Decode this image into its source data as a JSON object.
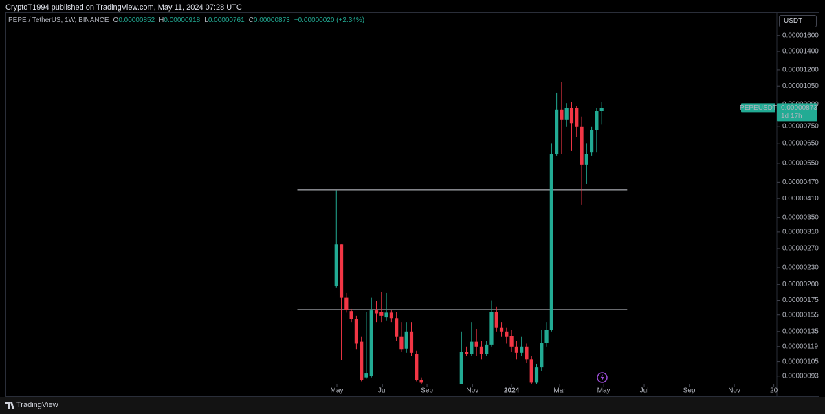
{
  "header": {
    "published": "CryptoT1994 published on TradingView.com, May 11, 2024 07:28 UTC",
    "currency": "USDT",
    "brand": "TradingView"
  },
  "chart_data": {
    "type": "candlestick",
    "title": "PEPE / TetherUS, 1W, BINANCE",
    "ohlc_legend": [
      {
        "key": "O",
        "value": "0.00000852"
      },
      {
        "key": "H",
        "value": "0.00000918"
      },
      {
        "key": "L",
        "value": "0.00000761"
      },
      {
        "key": "C",
        "value": "0.00000873"
      }
    ],
    "change": "+0.00000020 (+2.34%)",
    "up_color": "#22ab94",
    "down_color": "#f23645",
    "log_scale": true,
    "x": [
      0,
      1,
      2,
      3,
      4,
      5,
      6,
      7,
      8,
      9,
      10,
      11,
      12,
      13,
      14,
      15,
      16,
      17,
      25,
      26,
      27,
      28,
      29,
      30,
      31,
      32,
      33,
      34,
      35,
      36,
      37,
      38,
      39,
      40,
      41,
      42,
      43,
      44,
      45,
      46,
      47,
      48,
      49,
      50,
      51,
      52,
      53
    ],
    "open": [
      1.98e-06,
      2.79e-06,
      1.79e-06,
      1.6e-06,
      1.5e-06,
      1.24e-06,
      9.2e-07,
      9.3e-07,
      1.61e-06,
      1.59e-06,
      1.52e-06,
      1.58e-06,
      1.51e-06,
      1.29e-06,
      1.17e-06,
      1.35e-06,
      1.12e-06,
      9e-07,
      8.7e-07,
      1.14e-06,
      1.12e-06,
      1.24e-06,
      1.19e-06,
      1.12e-06,
      1.21e-06,
      1.59e-06,
      1.39e-06,
      1.35e-06,
      1.3e-06,
      1.19e-06,
      1.13e-06,
      1.19e-06,
      1.07e-06,
      8.8e-07,
      1e-06,
      1.23e-06,
      1.37e-06,
      5.93e-06,
      8.61e-06,
      7.9e-06,
      8.74e-06,
      8.7e-06,
      7.46e-06,
      5.44e-06,
      6.02e-06,
      7.26e-06,
      8.52e-06
    ],
    "high": [
      4.38e-06,
      2.79e-06,
      1.86e-06,
      1.63e-06,
      1.54e-06,
      1.29e-06,
      1.59e-06,
      1.79e-06,
      1.74e-06,
      1.87e-06,
      1.86e-06,
      1.61e-06,
      1.59e-06,
      1.46e-06,
      1.46e-06,
      1.46e-06,
      1.15e-06,
      9.2e-07,
      1.35e-06,
      1.19e-06,
      1.46e-06,
      1.38e-06,
      1.25e-06,
      1.25e-06,
      1.75e-06,
      1.66e-06,
      1.46e-06,
      1.39e-06,
      1.37e-06,
      1.25e-06,
      1.29e-06,
      1.22e-06,
      1.1e-06,
      1.03e-06,
      1.37e-06,
      1.46e-06,
      6.48e-06,
      9.93e-06,
      1.083e-05,
      9.1e-06,
      9.19e-06,
      8.89e-06,
      8.13e-06,
      6.48e-06,
      7.46e-06,
      8.74e-06,
      9.18e-06
    ],
    "low": [
      1.95e-06,
      1.06e-06,
      1.58e-06,
      1.46e-06,
      1.16e-06,
      8.9e-07,
      9.1e-07,
      9.2e-07,
      1.46e-06,
      1.46e-06,
      1.48e-06,
      1.46e-06,
      1.25e-06,
      1.14e-06,
      1.13e-06,
      1.1e-06,
      8.9e-07,
      8.7e-07,
      8.7e-07,
      1.1e-06,
      1.1e-06,
      1.1e-06,
      1.07e-06,
      1.1e-06,
      1.19e-06,
      1.35e-06,
      1.29e-06,
      1.22e-06,
      1.14e-06,
      1.07e-06,
      1.1e-06,
      1.04e-06,
      8.7e-07,
      8.7e-07,
      9.7e-07,
      1.19e-06,
      1.35e-06,
      5.86e-06,
      5.93e-06,
      7.46e-06,
      6.1e-06,
      6.85e-06,
      3.9e-06,
      4.63e-06,
      5.86e-06,
      6.02e-06,
      7.61e-06
    ],
    "close": [
      2.79e-06,
      1.79e-06,
      1.62e-06,
      1.5e-06,
      1.22e-06,
      9e-07,
      9.5e-07,
      1.61e-06,
      1.57e-06,
      1.54e-06,
      1.58e-06,
      1.51e-06,
      1.29e-06,
      1.16e-06,
      1.35e-06,
      1.13e-06,
      9e-07,
      8.8e-07,
      1.14e-06,
      1.12e-06,
      1.24e-06,
      1.19e-06,
      1.12e-06,
      1.21e-06,
      1.59e-06,
      1.39e-06,
      1.35e-06,
      1.29e-06,
      1.19e-06,
      1.13e-06,
      1.19e-06,
      1.07e-06,
      8.8e-07,
      1e-06,
      1.23e-06,
      1.37e-06,
      5.93e-06,
      8.61e-06,
      7.9e-06,
      8.7e-06,
      7.7e-06,
      7.46e-06,
      5.44e-06,
      5.93e-06,
      7.26e-06,
      8.52e-06,
      8.73e-06
    ],
    "xlim": [
      -66.1,
      88.0
    ],
    "xticks": [
      {
        "value": 0.1,
        "label": "May"
      },
      {
        "value": 9.2,
        "label": "Jul"
      },
      {
        "value": 18.1,
        "label": "Sep"
      },
      {
        "value": 27.2,
        "label": "Nov"
      },
      {
        "value": 35.0,
        "label": "2024"
      },
      {
        "value": 44.6,
        "label": "Mar"
      },
      {
        "value": 53.4,
        "label": "May"
      },
      {
        "value": 61.5,
        "label": "Jul"
      },
      {
        "value": 70.5,
        "label": "Sep"
      },
      {
        "value": 79.5,
        "label": "Nov"
      },
      {
        "value": 87.4,
        "label": "20"
      }
    ],
    "ylim": [
      8.67e-07,
      1.92e-05
    ],
    "yticks": [
      {
        "value": 1.6e-05,
        "label": "0.00001600"
      },
      {
        "value": 1.4e-05,
        "label": "0.00001400"
      },
      {
        "value": 1.2e-05,
        "label": "0.00001200"
      },
      {
        "value": 1.05e-05,
        "label": "0.00001050"
      },
      {
        "value": 9e-06,
        "label": "0.00000900"
      },
      {
        "value": 7.5e-06,
        "label": "0.00000750"
      },
      {
        "value": 6.5e-06,
        "label": "0.00000650"
      },
      {
        "value": 5.5e-06,
        "label": "0.00000550"
      },
      {
        "value": 4.7e-06,
        "label": "0.00000470"
      },
      {
        "value": 4.1e-06,
        "label": "0.00000410"
      },
      {
        "value": 3.5e-06,
        "label": "0.00000350"
      },
      {
        "value": 3.1e-06,
        "label": "0.00000310"
      },
      {
        "value": 2.7e-06,
        "label": "0.00000270"
      },
      {
        "value": 2.3e-06,
        "label": "0.00000230"
      },
      {
        "value": 2e-06,
        "label": "0.00000200"
      },
      {
        "value": 1.75e-06,
        "label": "0.00000175"
      },
      {
        "value": 1.55e-06,
        "label": "0.00000155"
      },
      {
        "value": 1.35e-06,
        "label": "0.00000135"
      },
      {
        "value": 1.19e-06,
        "label": "0.00000119"
      },
      {
        "value": 1.05e-06,
        "label": "0.00000105"
      },
      {
        "value": 9.3e-07,
        "label": "0.00000093"
      }
    ],
    "hlines": [
      {
        "value": 4.4e-06,
        "x": [
          -7.8,
          58.1
        ]
      },
      {
        "value": 1.62e-06,
        "x": [
          -7.8,
          58.1
        ]
      }
    ],
    "last_price": {
      "symbol": "PEPEUSDT",
      "value": 8.73e-06,
      "label": "0.00000873",
      "countdown": "1d 17h"
    }
  }
}
